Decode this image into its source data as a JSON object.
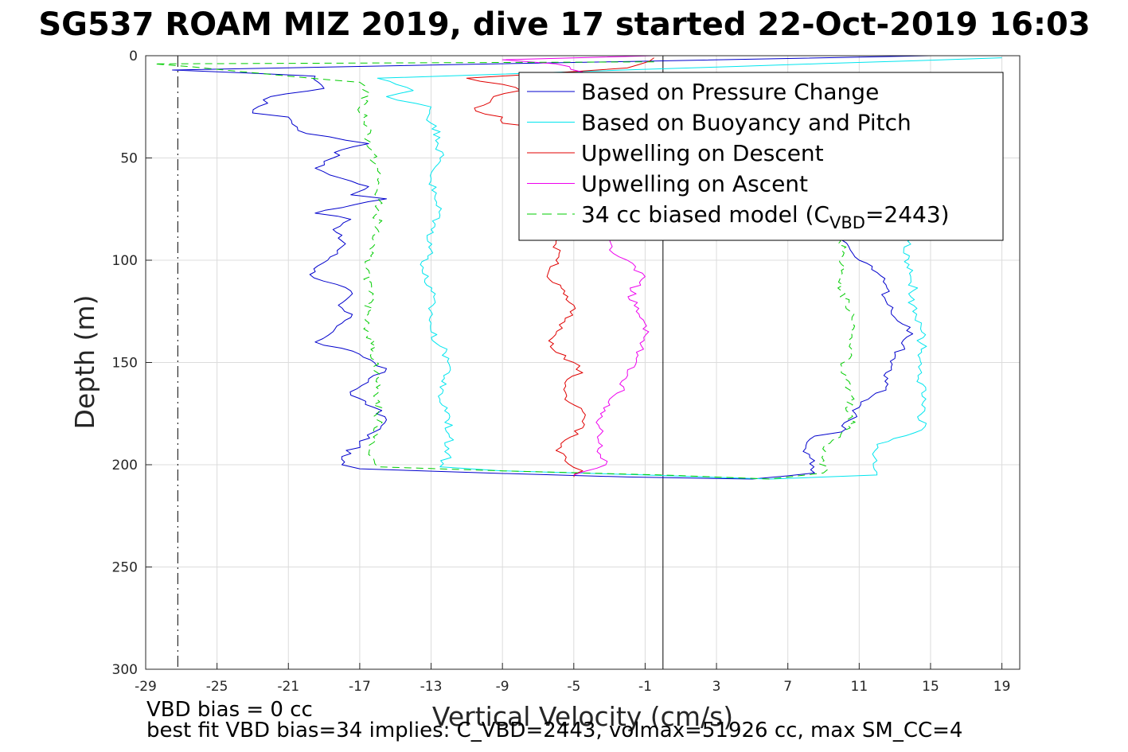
{
  "chart_data": {
    "type": "line",
    "title": "SG537 ROAM MIZ 2019, dive 17 started 22-Oct-2019 16:03",
    "xlabel": "Vertical Velocity (cm/s)",
    "ylabel": "Depth (m)",
    "xlim": [
      -29,
      20
    ],
    "ylim": [
      0,
      300
    ],
    "y_reversed": true,
    "grid": true,
    "x_ticks": [
      "-29",
      "-25",
      "-21",
      "-17",
      "-13",
      "-9",
      "-5",
      "-1",
      "3",
      "7",
      "11",
      "15",
      "19"
    ],
    "y_ticks": [
      "0",
      "50",
      "100",
      "150",
      "200",
      "250",
      "300"
    ],
    "legend_position": "top-right",
    "reference_lines": [
      {
        "kind": "vertical",
        "x": -27.2,
        "style": "dash-dot",
        "color": "#000000"
      },
      {
        "kind": "vertical",
        "x": 0,
        "style": "solid",
        "color": "#000000"
      }
    ],
    "legend": [
      {
        "label": "Based on Pressure Change",
        "style": "solid",
        "color": "#0000cc"
      },
      {
        "label": "Based on Buoyancy and Pitch",
        "style": "solid",
        "color": "#00e5ee"
      },
      {
        "label": "Upwelling on Descent",
        "style": "solid",
        "color": "#e00000"
      },
      {
        "label": "Upwelling on Ascent",
        "style": "solid",
        "color": "#ee00ee"
      },
      {
        "label": "34 cc biased model (C",
        "sub": "VBD",
        "suffix": "=2443)",
        "style": "dashed",
        "color": "#00cc00"
      }
    ],
    "series": [
      {
        "name": "Based on Pressure Change",
        "color": "#0000cc",
        "dash": false,
        "points": [
          [
            15,
            0
          ],
          [
            -27.5,
            7
          ],
          [
            -19.5,
            10
          ],
          [
            -19,
            16
          ],
          [
            -22,
            20
          ],
          [
            -23,
            28
          ],
          [
            -21,
            30
          ],
          [
            -20.5,
            35
          ],
          [
            -20,
            38
          ],
          [
            -16.5,
            43
          ],
          [
            -18,
            46
          ],
          [
            -18.5,
            50
          ],
          [
            -19.5,
            55
          ],
          [
            -18,
            60
          ],
          [
            -16.5,
            64
          ],
          [
            -17.5,
            68
          ],
          [
            -15.5,
            70
          ],
          [
            -19.5,
            77
          ],
          [
            -17.5,
            80
          ],
          [
            -18.5,
            85
          ],
          [
            -17.8,
            92
          ],
          [
            -18.8,
            100
          ],
          [
            -19.8,
            107
          ],
          [
            -17.5,
            115
          ],
          [
            -18.2,
            122
          ],
          [
            -17.5,
            128
          ],
          [
            -18.5,
            135
          ],
          [
            -19.5,
            140
          ],
          [
            -17,
            146
          ],
          [
            -15.5,
            153
          ],
          [
            -16.5,
            158
          ],
          [
            -17.5,
            166
          ],
          [
            -16.2,
            172
          ],
          [
            -15.5,
            178
          ],
          [
            -16.2,
            184
          ],
          [
            -17,
            190
          ],
          [
            -18,
            196
          ],
          [
            -18,
            200
          ],
          [
            -17,
            202
          ],
          [
            -10,
            204
          ],
          [
            -2,
            206
          ],
          [
            5,
            207
          ],
          [
            8.5,
            204
          ],
          [
            8.5,
            198
          ],
          [
            8,
            192
          ],
          [
            8.5,
            186
          ],
          [
            10,
            184
          ],
          [
            10.5,
            178
          ],
          [
            11,
            172
          ],
          [
            11.5,
            168
          ],
          [
            12.5,
            162
          ],
          [
            12.5,
            155
          ],
          [
            13,
            148
          ],
          [
            13.5,
            142
          ],
          [
            14,
            136
          ],
          [
            13,
            128
          ],
          [
            12.5,
            120
          ],
          [
            12.5,
            112
          ],
          [
            12,
            106
          ],
          [
            11,
            100
          ],
          [
            10.5,
            95
          ],
          [
            10,
            90
          ]
        ]
      },
      {
        "name": "Based on Buoyancy and Pitch",
        "color": "#00e5ee",
        "dash": false,
        "points": [
          [
            19,
            1
          ],
          [
            -16,
            11
          ],
          [
            -14,
            17
          ],
          [
            -15.5,
            20
          ],
          [
            -13,
            25
          ],
          [
            -13,
            33
          ],
          [
            -12.5,
            40
          ],
          [
            -12.5,
            50
          ],
          [
            -13,
            60
          ],
          [
            -12.8,
            70
          ],
          [
            -12.5,
            78
          ],
          [
            -13,
            85
          ],
          [
            -13,
            95
          ],
          [
            -13.5,
            105
          ],
          [
            -13,
            115
          ],
          [
            -13,
            125
          ],
          [
            -13,
            135
          ],
          [
            -12.5,
            142
          ],
          [
            -12,
            148
          ],
          [
            -12,
            155
          ],
          [
            -12.5,
            162
          ],
          [
            -12.5,
            168
          ],
          [
            -12,
            175
          ],
          [
            -12,
            185
          ],
          [
            -12,
            195
          ],
          [
            -12.5,
            201
          ],
          [
            -9,
            203
          ],
          [
            -1,
            205
          ],
          [
            6,
            207
          ],
          [
            12,
            205
          ],
          [
            12,
            198
          ],
          [
            12,
            190
          ],
          [
            14.5,
            183
          ],
          [
            14.5,
            175
          ],
          [
            14.5,
            165
          ],
          [
            14.5,
            155
          ],
          [
            14.5,
            145
          ],
          [
            14.5,
            135
          ],
          [
            14,
            125
          ],
          [
            14,
            115
          ],
          [
            14,
            105
          ],
          [
            13.5,
            95
          ],
          [
            14,
            85
          ]
        ]
      },
      {
        "name": "Upwelling on Descent",
        "color": "#e00000",
        "dash": false,
        "points": [
          [
            -0.5,
            1
          ],
          [
            -2,
            6
          ],
          [
            -11,
            11
          ],
          [
            -9,
            14
          ],
          [
            -8,
            17
          ],
          [
            -9.5,
            20
          ],
          [
            -10.5,
            27
          ],
          [
            -9,
            30
          ],
          [
            -9,
            33
          ],
          [
            -7,
            35
          ],
          [
            -6,
            36
          ],
          [
            -6,
            92
          ],
          [
            -6,
            100
          ],
          [
            -6.5,
            108
          ],
          [
            -5.5,
            115
          ],
          [
            -5,
            122
          ],
          [
            -5.5,
            130
          ],
          [
            -6.2,
            138
          ],
          [
            -6,
            145
          ],
          [
            -5,
            150
          ],
          [
            -4.5,
            155
          ],
          [
            -5.5,
            160
          ],
          [
            -5.5,
            168
          ],
          [
            -4.5,
            174
          ],
          [
            -4.5,
            182
          ],
          [
            -5.5,
            188
          ],
          [
            -6,
            193
          ],
          [
            -5.5,
            198
          ],
          [
            -4.5,
            203
          ],
          [
            -5,
            206
          ]
        ]
      },
      {
        "name": "Upwelling on Ascent",
        "color": "#ee00ee",
        "dash": false,
        "points": [
          [
            -0.5,
            0
          ],
          [
            -9,
            2
          ],
          [
            -6,
            4
          ],
          [
            -4.5,
            8
          ],
          [
            -5,
            14
          ],
          [
            -3,
            90
          ],
          [
            -3,
            95
          ],
          [
            -2,
            100
          ],
          [
            -1,
            108
          ],
          [
            -1.8,
            115
          ],
          [
            -1.5,
            125
          ],
          [
            -0.8,
            135
          ],
          [
            -1.2,
            142
          ],
          [
            -1.5,
            148
          ],
          [
            -2,
            155
          ],
          [
            -2.2,
            162
          ],
          [
            -3,
            168
          ],
          [
            -3.5,
            175
          ],
          [
            -3.5,
            185
          ],
          [
            -3.5,
            195
          ],
          [
            -3.2,
            200
          ],
          [
            -5,
            205
          ]
        ]
      },
      {
        "name": "34 cc biased model (CVBD=2443)",
        "color": "#00cc00",
        "dash": true,
        "points": [
          [
            -0.5,
            3
          ],
          [
            -28.5,
            4
          ],
          [
            -17,
            13
          ],
          [
            -16.5,
            18
          ],
          [
            -17,
            25
          ],
          [
            -16.5,
            35
          ],
          [
            -16.5,
            45
          ],
          [
            -16,
            55
          ],
          [
            -16,
            65
          ],
          [
            -16,
            75
          ],
          [
            -16,
            85
          ],
          [
            -16.5,
            95
          ],
          [
            -16.5,
            105
          ],
          [
            -16.5,
            115
          ],
          [
            -16.5,
            125
          ],
          [
            -16.5,
            135
          ],
          [
            -16.2,
            145
          ],
          [
            -16,
            155
          ],
          [
            -16,
            165
          ],
          [
            -16,
            175
          ],
          [
            -16,
            185
          ],
          [
            -16.5,
            195
          ],
          [
            -16,
            201
          ],
          [
            -9,
            203
          ],
          [
            0,
            205
          ],
          [
            6,
            207
          ],
          [
            9,
            204
          ],
          [
            9,
            195
          ],
          [
            9.5,
            188
          ],
          [
            10.5,
            182
          ],
          [
            10.5,
            175
          ],
          [
            10.5,
            165
          ],
          [
            10,
            155
          ],
          [
            10.5,
            145
          ],
          [
            10.5,
            135
          ],
          [
            10.5,
            125
          ],
          [
            10,
            115
          ],
          [
            10,
            105
          ],
          [
            10,
            95
          ],
          [
            10,
            85
          ]
        ]
      }
    ]
  },
  "notes": {
    "vbd_bias": "VBD bias = 0 cc",
    "best_fit": "best fit VBD bias=34 implies: C_VBD=2443, volmax=51926 cc, max SM_CC=4"
  }
}
